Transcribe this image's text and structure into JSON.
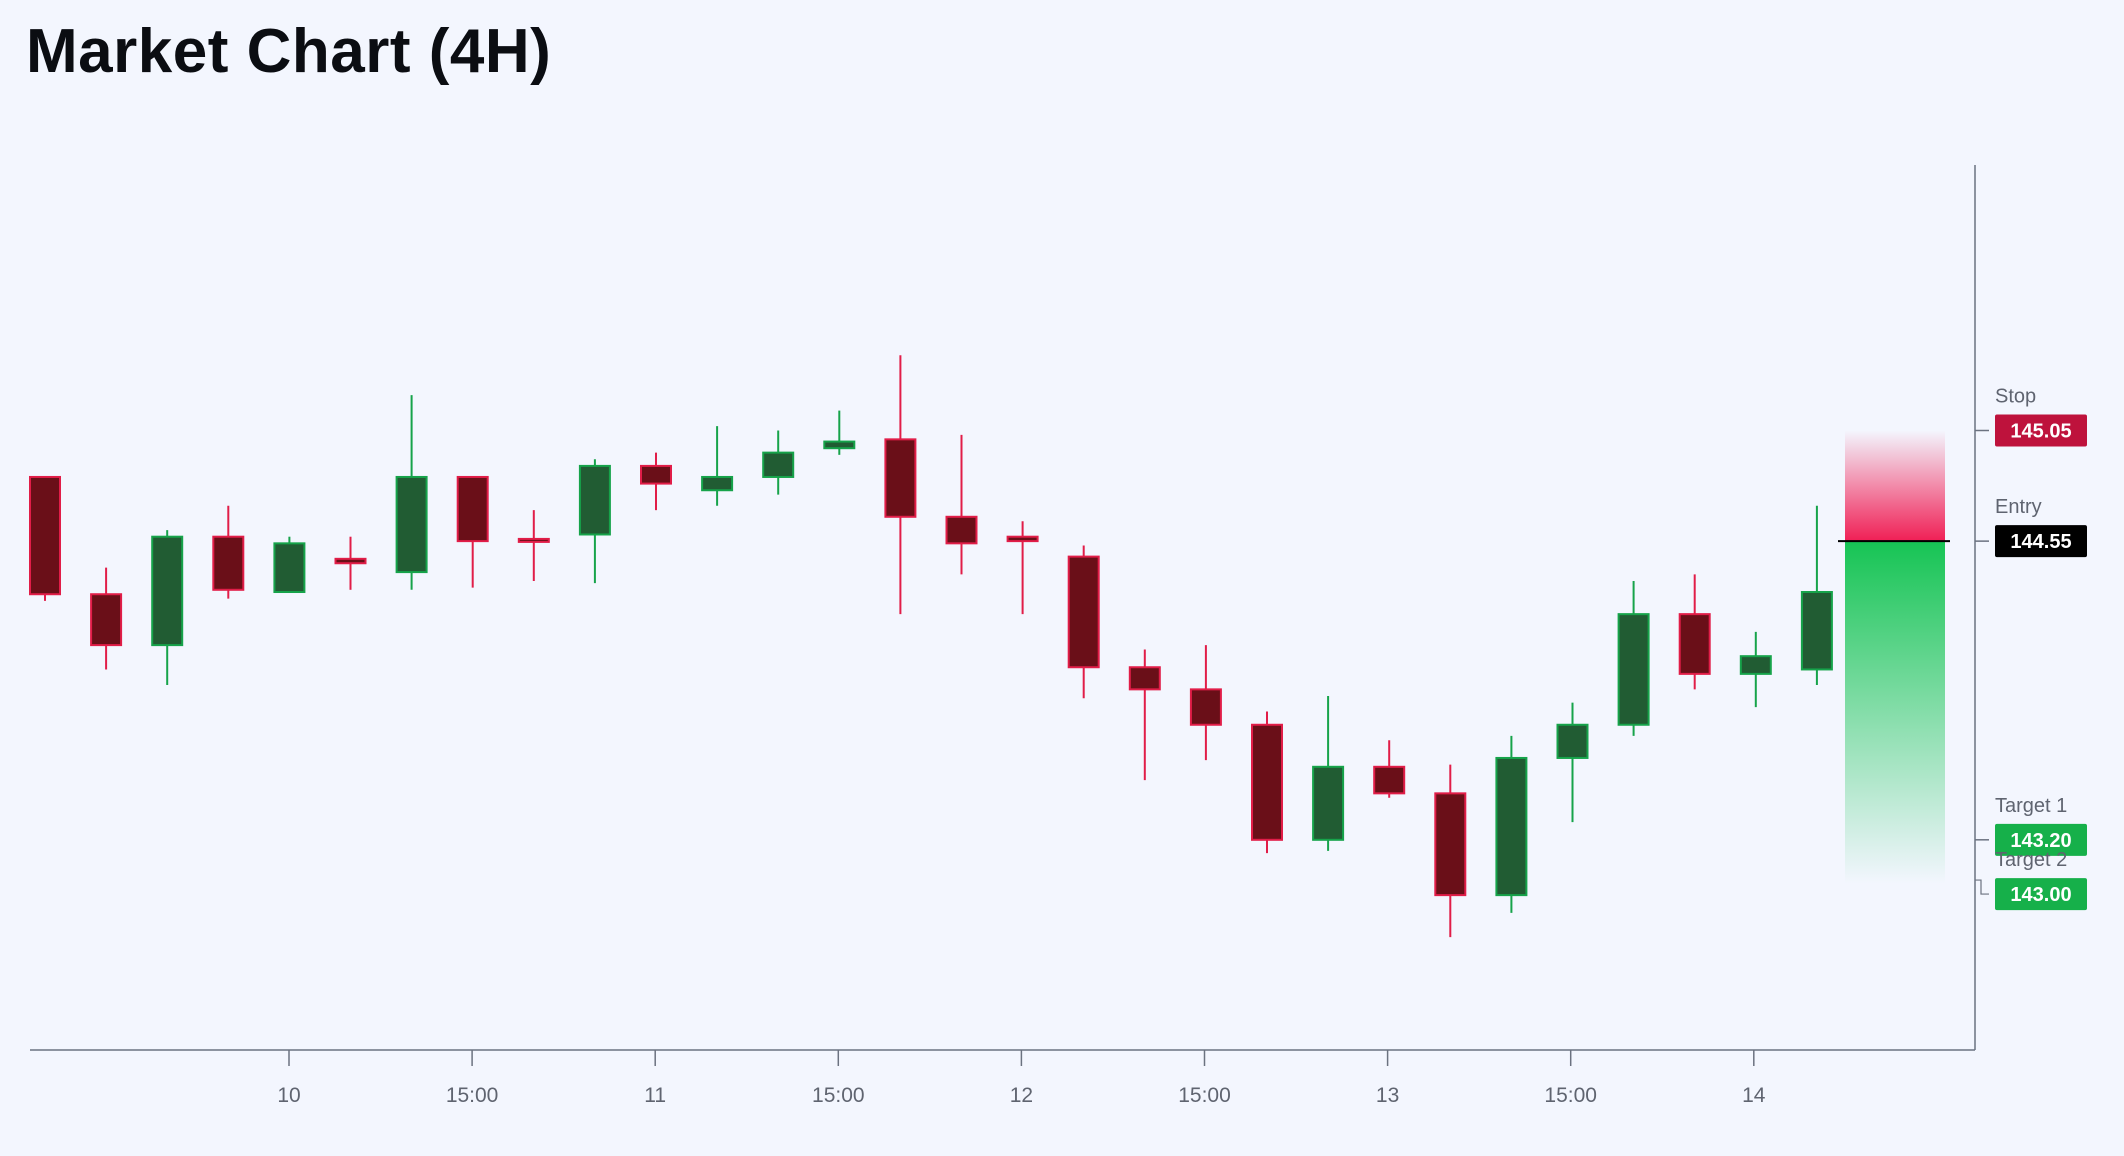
{
  "title": "Market Chart (4H)",
  "chart_data": {
    "type": "candlestick",
    "title": "Market Chart (4H)",
    "timeframe": "4H",
    "xlabel": "",
    "ylabel": "",
    "ylim": [
      142.25,
      146.25
    ],
    "x_ticks": [
      "10",
      "15:00",
      "11",
      "15:00",
      "12",
      "15:00",
      "13",
      "15:00",
      "14"
    ],
    "grid": false,
    "colors": {
      "up_body": "#215c33",
      "up_border": "#16a34a",
      "down_body": "#6a0f18",
      "down_border": "#e11d48",
      "stop": "#be123c",
      "entry": "#000000",
      "target": "#16b04a",
      "axis": "#6b7280"
    },
    "candles": [
      {
        "open": 144.84,
        "high": 144.84,
        "low": 144.28,
        "close": 144.31
      },
      {
        "open": 144.31,
        "high": 144.43,
        "low": 143.97,
        "close": 144.08
      },
      {
        "open": 144.08,
        "high": 144.6,
        "low": 143.9,
        "close": 144.57
      },
      {
        "open": 144.57,
        "high": 144.71,
        "low": 144.29,
        "close": 144.33
      },
      {
        "open": 144.32,
        "high": 144.57,
        "low": 144.32,
        "close": 144.54
      },
      {
        "open": 144.47,
        "high": 144.57,
        "low": 144.33,
        "close": 144.45
      },
      {
        "open": 144.41,
        "high": 145.21,
        "low": 144.33,
        "close": 144.84
      },
      {
        "open": 144.84,
        "high": 144.84,
        "low": 144.34,
        "close": 144.55
      },
      {
        "open": 144.56,
        "high": 144.69,
        "low": 144.37,
        "close": 144.55
      },
      {
        "open": 144.58,
        "high": 144.92,
        "low": 144.36,
        "close": 144.89
      },
      {
        "open": 144.89,
        "high": 144.95,
        "low": 144.69,
        "close": 144.81
      },
      {
        "open": 144.78,
        "high": 145.07,
        "low": 144.71,
        "close": 144.84
      },
      {
        "open": 144.84,
        "high": 145.05,
        "low": 144.76,
        "close": 144.95
      },
      {
        "open": 144.97,
        "high": 145.14,
        "low": 144.94,
        "close": 145.0
      },
      {
        "open": 145.01,
        "high": 145.39,
        "low": 144.22,
        "close": 144.66
      },
      {
        "open": 144.66,
        "high": 145.03,
        "low": 144.4,
        "close": 144.54
      },
      {
        "open": 144.57,
        "high": 144.64,
        "low": 144.22,
        "close": 144.55
      },
      {
        "open": 144.48,
        "high": 144.53,
        "low": 143.84,
        "close": 143.98
      },
      {
        "open": 143.98,
        "high": 144.06,
        "low": 143.47,
        "close": 143.88
      },
      {
        "open": 143.88,
        "high": 144.08,
        "low": 143.56,
        "close": 143.72
      },
      {
        "open": 143.72,
        "high": 143.78,
        "low": 143.14,
        "close": 143.2
      },
      {
        "open": 143.2,
        "high": 143.85,
        "low": 143.15,
        "close": 143.53
      },
      {
        "open": 143.53,
        "high": 143.65,
        "low": 143.39,
        "close": 143.41
      },
      {
        "open": 143.41,
        "high": 143.54,
        "low": 142.76,
        "close": 142.95
      },
      {
        "open": 142.95,
        "high": 143.67,
        "low": 142.87,
        "close": 143.57
      },
      {
        "open": 143.57,
        "high": 143.82,
        "low": 143.28,
        "close": 143.72
      },
      {
        "open": 143.72,
        "high": 144.37,
        "low": 143.67,
        "close": 144.22
      },
      {
        "open": 144.22,
        "high": 144.4,
        "low": 143.88,
        "close": 143.95
      },
      {
        "open": 143.95,
        "high": 144.14,
        "low": 143.8,
        "close": 144.03
      },
      {
        "open": 143.97,
        "high": 144.71,
        "low": 143.9,
        "close": 144.32
      }
    ],
    "levels": [
      {
        "name": "Stop",
        "value": 145.05,
        "display": "145.05",
        "color": "#be123c"
      },
      {
        "name": "Entry",
        "value": 144.55,
        "display": "144.55",
        "color": "#000000"
      },
      {
        "name": "Target 1",
        "value": 143.2,
        "display": "143.20",
        "color": "#16b04a"
      },
      {
        "name": "Target 2",
        "value": 143.0,
        "display": "143.00",
        "color": "#16b04a"
      }
    ],
    "risk_zone": {
      "from": 144.55,
      "to": 145.05,
      "color": "#f01f55"
    },
    "reward_zone": {
      "from": 143.0,
      "to": 144.55,
      "color": "#16c454"
    }
  }
}
